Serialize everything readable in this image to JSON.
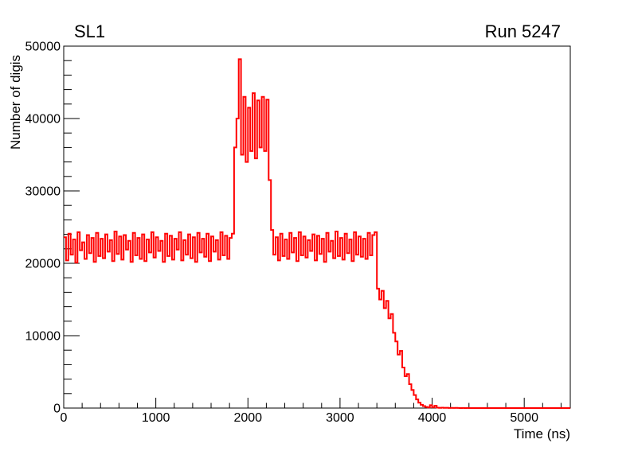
{
  "header": {
    "left_title": "SL1",
    "right_title": "Run 5247"
  },
  "colors": {
    "line": "#ff0000",
    "axis": "#000000",
    "background": "#ffffff"
  },
  "chart_data": {
    "type": "line",
    "style": "histogram-step",
    "title": "SL1",
    "annotation": "Run 5247",
    "xlabel": "Time (ns)",
    "ylabel": "Number of digis",
    "xlim": [
      0,
      5500
    ],
    "ylim": [
      0,
      50000
    ],
    "x_major_ticks": [
      0,
      1000,
      2000,
      3000,
      4000,
      5000
    ],
    "x_tick_labels": [
      "0",
      "1000",
      "2000",
      "3000",
      "4000",
      "5000"
    ],
    "x_minor_step": 200,
    "y_major_ticks": [
      0,
      10000,
      20000,
      30000,
      40000,
      50000
    ],
    "y_tick_labels": [
      "0",
      "10000",
      "20000",
      "30000",
      "40000",
      "50000"
    ],
    "y_minor_step": 2000,
    "grid": "off",
    "legend": "none",
    "line_color": "#ff0000",
    "t_start": 0,
    "bin_width_ns": 25,
    "values": [
      23600,
      20400,
      24100,
      21200,
      23300,
      20100,
      24300,
      21800,
      22900,
      20600,
      23900,
      21400,
      23500,
      20200,
      24200,
      21000,
      23400,
      20700,
      24000,
      21600,
      23200,
      20300,
      24400,
      21300,
      23700,
      20500,
      23900,
      21900,
      23100,
      20200,
      24200,
      21100,
      23500,
      20600,
      24000,
      20300,
      23300,
      21500,
      24300,
      20800,
      23600,
      21700,
      23100,
      20200,
      24100,
      21000,
      23800,
      20500,
      23400,
      21900,
      24300,
      20400,
      23200,
      21200,
      24000,
      20700,
      23600,
      20200,
      24200,
      21500,
      23400,
      20900,
      24100,
      20300,
      23700,
      21600,
      23200,
      20500,
      24300,
      21100,
      23800,
      20600,
      23500,
      24100,
      36000,
      40000,
      48200,
      35000,
      43000,
      34000,
      41500,
      35500,
      43500,
      34500,
      42500,
      36000,
      43000,
      35500,
      42600,
      31500,
      24600,
      21200,
      23600,
      20400,
      24100,
      21000,
      23300,
      20600,
      24200,
      21500,
      23500,
      20300,
      24300,
      21100,
      23700,
      20800,
      23200,
      21700,
      24000,
      20400,
      23800,
      21300,
      23400,
      20200,
      24200,
      21600,
      23100,
      20700,
      24400,
      21000,
      23500,
      20500,
      24100,
      21400,
      23300,
      20300,
      24300,
      21200,
      23700,
      20900,
      23400,
      20600,
      24200,
      21100,
      23900,
      24300,
      16500,
      15000,
      16200,
      13800,
      14800,
      12400,
      13000,
      10400,
      9200,
      7400,
      7900,
      5600,
      4400,
      4700,
      3300,
      2500,
      1800,
      1200,
      750,
      450,
      280,
      150,
      80,
      400,
      100,
      320,
      60,
      30,
      50,
      20,
      40,
      10,
      30,
      10,
      20,
      10,
      0,
      10,
      0,
      10,
      0,
      0,
      0,
      0,
      0,
      0,
      0,
      0,
      0,
      0,
      0,
      0,
      0,
      0,
      0,
      0,
      0,
      0,
      0,
      0,
      0,
      0,
      0,
      0,
      0,
      0,
      0,
      0,
      0,
      0,
      0,
      0,
      0,
      0,
      0,
      0,
      0,
      0,
      0,
      0,
      0,
      0,
      0,
      0
    ]
  }
}
